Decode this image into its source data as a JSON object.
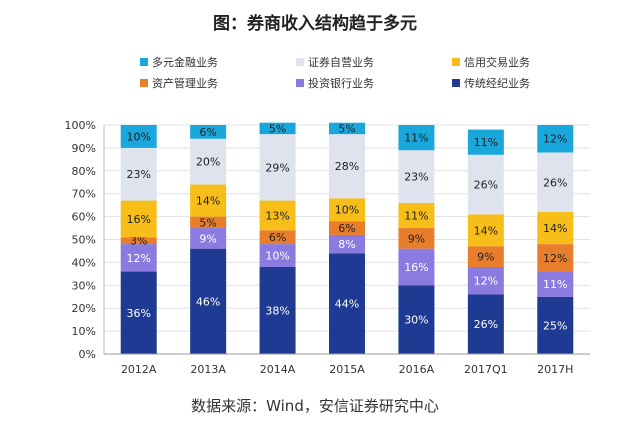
{
  "chart_data": {
    "type": "bar",
    "stacked": true,
    "title": "图：券商收入结构趋于多元",
    "source": "数据来源：Wind，安信证券研究中心",
    "categories": [
      "2012A",
      "2013A",
      "2014A",
      "2015A",
      "2016A",
      "2017Q1",
      "2017H"
    ],
    "ylim": [
      0,
      100
    ],
    "yticks": [
      "0%",
      "10%",
      "20%",
      "30%",
      "40%",
      "50%",
      "60%",
      "70%",
      "80%",
      "90%",
      "100%"
    ],
    "legend_placement": "top",
    "series": [
      {
        "name": "传统经纪业务",
        "color": "#1f3a93",
        "label_color": "#ffffff",
        "values": [
          36,
          46,
          38,
          44,
          30,
          26,
          25
        ],
        "labels": [
          "36%",
          "46%",
          "38%",
          "44%",
          "30%",
          "26%",
          "25%"
        ]
      },
      {
        "name": "投资银行业务",
        "color": "#8b7be0",
        "label_color": "#ffffff",
        "values": [
          12,
          9,
          10,
          8,
          16,
          12,
          11
        ],
        "labels": [
          "12%",
          "9%",
          "10%",
          "8%",
          "16%",
          "12%",
          "11%"
        ]
      },
      {
        "name": "资产管理业务",
        "color": "#e87e2c",
        "label_color": "#222222",
        "values": [
          3,
          5,
          6,
          6,
          9,
          9,
          12
        ],
        "labels": [
          "3%",
          "5%",
          "6%",
          "6%",
          "9%",
          "9%",
          "12%"
        ]
      },
      {
        "name": "信用交易业务",
        "color": "#f7be1a",
        "label_color": "#222222",
        "values": [
          16,
          14,
          13,
          10,
          11,
          14,
          14
        ],
        "labels": [
          "16%",
          "14%",
          "13%",
          "10%",
          "11%",
          "14%",
          "14%"
        ]
      },
      {
        "name": "证券自营业务",
        "color": "#dfe3ee",
        "label_color": "#222222",
        "values": [
          23,
          20,
          29,
          28,
          23,
          26,
          26
        ],
        "labels": [
          "23%",
          "20%",
          "29%",
          "28%",
          "23%",
          "26%",
          "26%"
        ]
      },
      {
        "name": "多元金融业务",
        "color": "#1aa7dc",
        "label_color": "#222222",
        "values": [
          10,
          6,
          5,
          5,
          11,
          11,
          12
        ],
        "labels": [
          "10%",
          "6%",
          "5%",
          "5%",
          "11%",
          "11%",
          "12%"
        ]
      }
    ],
    "legend_order": [
      "多元金融业务",
      "证券自营业务",
      "信用交易业务",
      "资产管理业务",
      "投资银行业务",
      "传统经纪业务"
    ]
  }
}
